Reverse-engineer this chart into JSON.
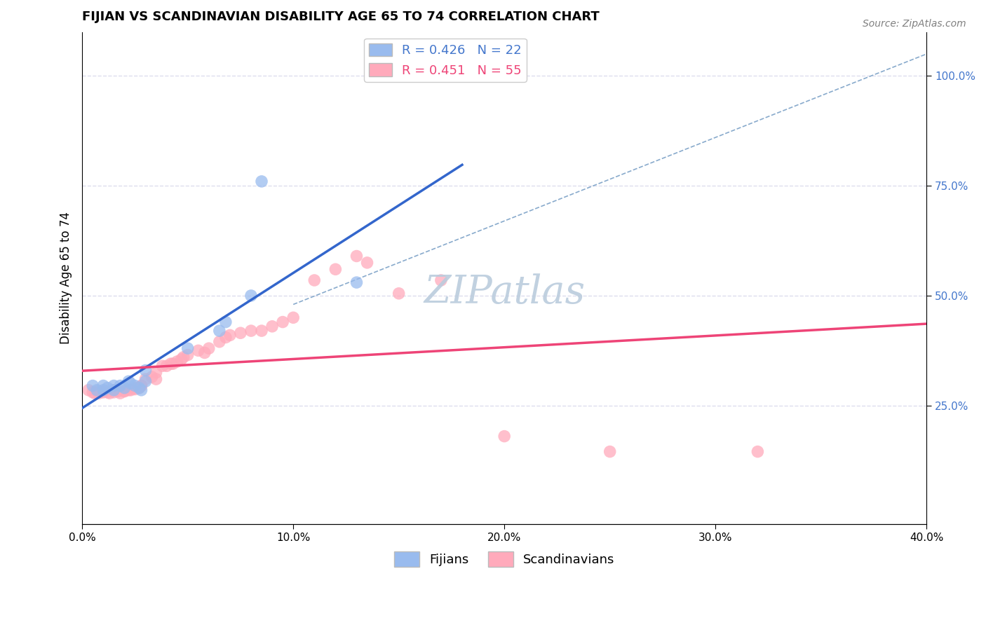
{
  "title": "FIJIAN VS SCANDINAVIAN DISABILITY AGE 65 TO 74 CORRELATION CHART",
  "source_text": "Source: ZipAtlas.com",
  "ylabel": "Disability Age 65 to 74",
  "xlim": [
    0.0,
    0.4
  ],
  "ylim": [
    -0.02,
    1.1
  ],
  "xtick_labels": [
    "0.0%",
    "10.0%",
    "20.0%",
    "30.0%",
    "40.0%"
  ],
  "xtick_values": [
    0.0,
    0.1,
    0.2,
    0.3,
    0.4
  ],
  "ytick_labels_right": [
    "25.0%",
    "50.0%",
    "75.0%",
    "100.0%"
  ],
  "ytick_values_right": [
    0.25,
    0.5,
    0.75,
    1.0
  ],
  "fijian_color": "#99BBEE",
  "scandinavian_color": "#FFAABB",
  "fijian_R": 0.426,
  "fijian_N": 22,
  "scandinavian_R": 0.451,
  "scandinavian_N": 55,
  "legend_fijian_color": "#4477CC",
  "legend_scan_color": "#EE4477",
  "watermark_color": "#BBCCDD",
  "fijian_scatter": [
    [
      0.005,
      0.295
    ],
    [
      0.007,
      0.285
    ],
    [
      0.01,
      0.285
    ],
    [
      0.01,
      0.295
    ],
    [
      0.012,
      0.29
    ],
    [
      0.015,
      0.285
    ],
    [
      0.015,
      0.295
    ],
    [
      0.018,
      0.295
    ],
    [
      0.02,
      0.29
    ],
    [
      0.022,
      0.305
    ],
    [
      0.023,
      0.3
    ],
    [
      0.025,
      0.295
    ],
    [
      0.027,
      0.29
    ],
    [
      0.028,
      0.285
    ],
    [
      0.03,
      0.305
    ],
    [
      0.03,
      0.33
    ],
    [
      0.05,
      0.38
    ],
    [
      0.065,
      0.42
    ],
    [
      0.068,
      0.44
    ],
    [
      0.08,
      0.5
    ],
    [
      0.085,
      0.76
    ],
    [
      0.13,
      0.53
    ]
  ],
  "scandinavian_scatter": [
    [
      0.003,
      0.285
    ],
    [
      0.005,
      0.28
    ],
    [
      0.006,
      0.278
    ],
    [
      0.007,
      0.282
    ],
    [
      0.008,
      0.278
    ],
    [
      0.01,
      0.28
    ],
    [
      0.01,
      0.283
    ],
    [
      0.012,
      0.28
    ],
    [
      0.013,
      0.278
    ],
    [
      0.015,
      0.28
    ],
    [
      0.015,
      0.285
    ],
    [
      0.017,
      0.282
    ],
    [
      0.018,
      0.278
    ],
    [
      0.02,
      0.282
    ],
    [
      0.02,
      0.283
    ],
    [
      0.022,
      0.285
    ],
    [
      0.023,
      0.285
    ],
    [
      0.025,
      0.287
    ],
    [
      0.025,
      0.29
    ],
    [
      0.027,
      0.29
    ],
    [
      0.028,
      0.295
    ],
    [
      0.028,
      0.295
    ],
    [
      0.03,
      0.31
    ],
    [
      0.033,
      0.315
    ],
    [
      0.035,
      0.31
    ],
    [
      0.035,
      0.325
    ],
    [
      0.038,
      0.34
    ],
    [
      0.04,
      0.34
    ],
    [
      0.042,
      0.345
    ],
    [
      0.043,
      0.345
    ],
    [
      0.045,
      0.35
    ],
    [
      0.047,
      0.355
    ],
    [
      0.048,
      0.36
    ],
    [
      0.05,
      0.365
    ],
    [
      0.055,
      0.375
    ],
    [
      0.058,
      0.37
    ],
    [
      0.06,
      0.38
    ],
    [
      0.065,
      0.395
    ],
    [
      0.068,
      0.405
    ],
    [
      0.07,
      0.41
    ],
    [
      0.075,
      0.415
    ],
    [
      0.08,
      0.42
    ],
    [
      0.085,
      0.42
    ],
    [
      0.09,
      0.43
    ],
    [
      0.095,
      0.44
    ],
    [
      0.1,
      0.45
    ],
    [
      0.11,
      0.535
    ],
    [
      0.12,
      0.56
    ],
    [
      0.13,
      0.59
    ],
    [
      0.135,
      0.575
    ],
    [
      0.15,
      0.505
    ],
    [
      0.17,
      0.535
    ],
    [
      0.2,
      0.18
    ],
    [
      0.25,
      0.145
    ],
    [
      0.32,
      0.145
    ]
  ],
  "background_color": "#FFFFFF",
  "grid_color": "#DDDDEE",
  "fijian_line_color": "#3366CC",
  "scandinavian_line_color": "#EE4477",
  "diag_line_color": "#88AACC"
}
